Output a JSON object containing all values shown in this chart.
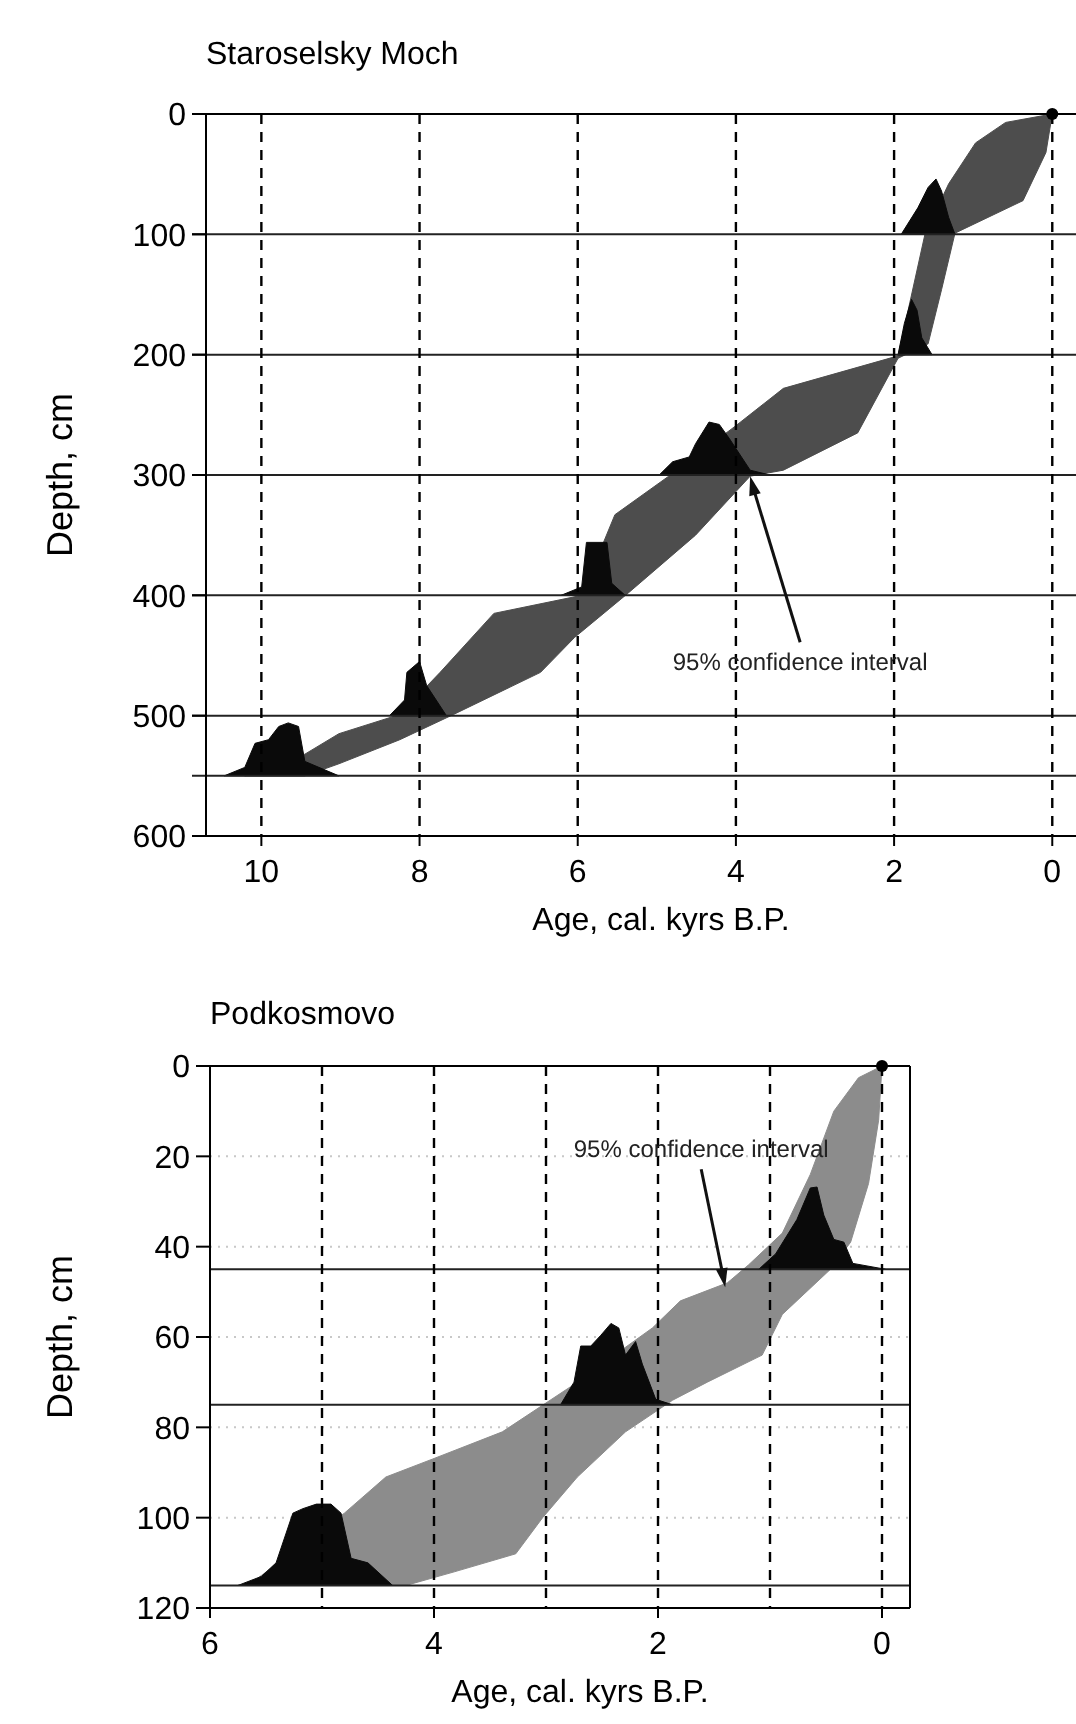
{
  "chart_data": [
    {
      "type": "area",
      "title": "Staroselsky Moch",
      "xlabel": "Age, cal. kyrs B.P.",
      "ylabel": "Depth, cm",
      "xlim": [
        10.7,
        -0.3
      ],
      "xticks": [
        10,
        8,
        6,
        4,
        2,
        0
      ],
      "ylim": [
        600,
        0
      ],
      "yticks": [
        0,
        100,
        200,
        300,
        400,
        500,
        600
      ],
      "grid": false,
      "series": [
        {
          "color": "#4d4d4d",
          "x": [
            0,
            0.59,
            0.97,
            1.31,
            1.61,
            1.95,
            3.4,
            4.0,
            4.85,
            5.53,
            5.95,
            7.06,
            7.74,
            8.25,
            9.02,
            9.45,
            10.21,
            9.45,
            9.02,
            8.25,
            7.57,
            6.47,
            6.04,
            5.36,
            4.51,
            3.82,
            3.4,
            2.46,
            1.95,
            1.57,
            1.4,
            1.23,
            0.37,
            0.08
          ],
          "values": [
            0,
            7,
            24,
            58,
            100,
            201,
            228,
            259,
            301,
            333,
            400,
            415,
            464,
            499,
            515,
            532,
            550,
            550,
            540,
            520,
            499,
            464,
            435,
            398,
            350,
            301,
            296,
            265,
            203,
            191,
            146,
            99,
            72,
            32
          ]
        },
        {
          "color": "#0a0a0a",
          "x": [
            1.91,
            1.7,
            1.57,
            1.47,
            1.4,
            1.31,
            1.23
          ],
          "values": [
            100,
            78,
            61,
            54,
            64,
            86,
            100
          ]
        },
        {
          "color": "#0a0a0a",
          "x": [
            1.95,
            1.87,
            1.78,
            1.71,
            1.65,
            1.52
          ],
          "values": [
            200,
            174,
            154,
            163,
            186,
            200
          ]
        },
        {
          "color": "#0a0a0a",
          "x": [
            4.97,
            4.8,
            4.59,
            4.51,
            4.34,
            4.21,
            4.08,
            3.82,
            3.57
          ],
          "values": [
            300,
            289,
            285,
            274,
            256,
            258,
            270,
            296,
            300
          ]
        },
        {
          "color": "#0a0a0a",
          "x": [
            6.21,
            5.95,
            5.89,
            5.63,
            5.57,
            5.4
          ],
          "values": [
            400,
            393,
            356,
            356,
            390,
            400
          ]
        },
        {
          "color": "#0a0a0a",
          "x": [
            8.38,
            8.19,
            8.16,
            8.0,
            7.91,
            7.66
          ],
          "values": [
            500,
            487,
            464,
            455,
            475,
            500
          ]
        },
        {
          "color": "#0a0a0a",
          "x": [
            10.47,
            10.21,
            10.08,
            9.91,
            9.78,
            9.66,
            9.53,
            9.45,
            9.02
          ],
          "values": [
            550,
            543,
            523,
            520,
            509,
            506,
            509,
            538,
            550
          ]
        },
        {
          "type": "scatter",
          "color": "#000000",
          "marker": "circle",
          "x": [
            0
          ],
          "values": [
            0
          ]
        }
      ],
      "ref_lines": [
        {
          "axis": "y",
          "value": 100
        },
        {
          "axis": "y",
          "value": 200
        },
        {
          "axis": "y",
          "value": 300
        },
        {
          "axis": "y",
          "value": 400
        },
        {
          "axis": "y",
          "value": 500
        },
        {
          "axis": "y",
          "value": 550
        },
        {
          "axis": "x",
          "value": 10,
          "line_style": "dashed"
        },
        {
          "axis": "x",
          "value": 8,
          "line_style": "dashed"
        },
        {
          "axis": "x",
          "value": 6,
          "line_style": "dashed"
        },
        {
          "axis": "x",
          "value": 4,
          "line_style": "dashed"
        },
        {
          "axis": "x",
          "value": 2,
          "line_style": "dashed"
        },
        {
          "axis": "x",
          "value": 0,
          "line_style": "dashed"
        }
      ],
      "annotations": [
        {
          "text": "95% confidence interval",
          "x": 3.82,
          "y": 301
        }
      ]
    },
    {
      "type": "area",
      "title": "Podkosmovo",
      "xlabel": "Age, cal. kyrs B.P.",
      "ylabel": "Depth, cm",
      "xlim": [
        6,
        -0.25
      ],
      "xticks": [
        6,
        4,
        2,
        0
      ],
      "ylim": [
        120,
        0
      ],
      "yticks": [
        0,
        20,
        40,
        60,
        80,
        100,
        120
      ],
      "grid": "y",
      "series": [
        {
          "color": "#8c8c8c",
          "x": [
            0,
            0.21,
            0.43,
            0.64,
            0.89,
            1.19,
            1.38,
            1.8,
            2.05,
            2.78,
            3.39,
            4.01,
            4.43,
            4.8,
            5.66,
            4.25,
            3.82,
            3.27,
            3.03,
            2.72,
            2.29,
            1.87,
            1.56,
            1.07,
            0.89,
            0.46,
            0.28,
            0.12,
            0.03
          ],
          "values": [
            0,
            2.6,
            10,
            24,
            37,
            44,
            48,
            52,
            58,
            71,
            81,
            87,
            91,
            99,
            115,
            115,
            112,
            108,
            100,
            91,
            81,
            74,
            70,
            64,
            55,
            45,
            39,
            26,
            12
          ]
        },
        {
          "color": "#0a0a0a",
          "x": [
            1.1,
            0.95,
            0.76,
            0.64,
            0.58,
            0.52,
            0.43,
            0.34,
            0.26,
            -0.03
          ],
          "values": [
            45,
            41.6,
            34,
            27,
            26.8,
            33,
            38.4,
            39,
            43.7,
            45
          ]
        },
        {
          "color": "#0a0a0a",
          "x": [
            2.87,
            2.75,
            2.69,
            2.6,
            2.51,
            2.42,
            2.35,
            2.29,
            2.2,
            2.14,
            2.02,
            1.87
          ],
          "values": [
            75,
            70,
            62,
            62,
            59.6,
            57,
            58,
            64,
            61,
            66,
            73.8,
            75
          ]
        },
        {
          "color": "#0a0a0a",
          "x": [
            5.75,
            5.54,
            5.41,
            5.26,
            5.17,
            5.05,
            4.92,
            4.83,
            4.74,
            4.59,
            4.37
          ],
          "values": [
            115,
            113,
            110,
            99,
            98,
            97,
            97,
            99,
            109,
            110,
            115
          ]
        },
        {
          "type": "scatter",
          "color": "#000000",
          "marker": "circle",
          "x": [
            0
          ],
          "values": [
            0
          ]
        }
      ],
      "ref_lines": [
        {
          "axis": "y",
          "value": 45
        },
        {
          "axis": "y",
          "value": 75
        },
        {
          "axis": "y",
          "value": 115
        },
        {
          "axis": "x",
          "value": 5,
          "line_style": "dashed"
        },
        {
          "axis": "x",
          "value": 4,
          "line_style": "dashed"
        },
        {
          "axis": "x",
          "value": 3,
          "line_style": "dashed"
        },
        {
          "axis": "x",
          "value": 2,
          "line_style": "dashed"
        },
        {
          "axis": "x",
          "value": 1,
          "line_style": "dashed"
        },
        {
          "axis": "x",
          "value": 0,
          "line_style": "dashed"
        }
      ],
      "annotations": [
        {
          "text": "95% confidence interval",
          "x": 1.4,
          "y": 49
        }
      ]
    }
  ]
}
